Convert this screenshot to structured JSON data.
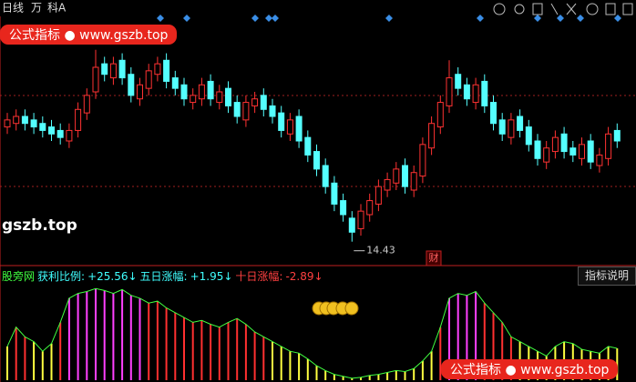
{
  "toolbar": {
    "period": "日线",
    "items": [
      "万",
      "科A"
    ]
  },
  "watermarks": {
    "badge": "公式指标",
    "url": "www.gszb.top",
    "site": "gszb.top"
  },
  "button": "指标说明",
  "chart_data": [
    {
      "type": "candlestick",
      "ylim": [
        13.8,
        20.8
      ],
      "up_color": "#ff3232",
      "down_color": "#54ffff",
      "low_annotation": 14.43,
      "marker": "财",
      "open": [
        17.7,
        17.8,
        18.0,
        17.9,
        17.8,
        17.7,
        17.6,
        17.3,
        17.6,
        18.1,
        18.7,
        19.5,
        19.1,
        19.6,
        19.2,
        18.5,
        18.8,
        19.2,
        19.6,
        19.1,
        18.9,
        18.4,
        18.5,
        19.0,
        18.4,
        18.8,
        18.4,
        17.9,
        18.3,
        18.6,
        18.3,
        18.1,
        17.5,
        18.0,
        17.4,
        17.0,
        16.6,
        16.1,
        15.6,
        15.1,
        14.8,
        15.2,
        15.5,
        15.9,
        16.1,
        16.6,
        15.9,
        16.3,
        17.1,
        17.7,
        18.3,
        19.2,
        18.9,
        18.4,
        19.0,
        18.4,
        17.9,
        17.4,
        18.0,
        17.7,
        17.3,
        16.7,
        17.0,
        17.5,
        17.1,
        16.8,
        17.3,
        16.6,
        16.8,
        17.6
      ],
      "high": [
        18.1,
        18.2,
        18.2,
        18.1,
        18.0,
        17.9,
        17.8,
        17.8,
        18.4,
        18.8,
        19.9,
        19.7,
        19.7,
        19.8,
        19.4,
        19.1,
        19.5,
        19.7,
        19.8,
        19.3,
        19.1,
        18.8,
        19.1,
        19.2,
        18.9,
        19.0,
        18.6,
        18.6,
        18.7,
        18.8,
        18.5,
        18.3,
        18.1,
        18.2,
        17.6,
        17.2,
        16.8,
        16.3,
        15.8,
        15.3,
        15.5,
        15.8,
        16.2,
        16.4,
        16.7,
        16.8,
        16.6,
        17.4,
        18.0,
        18.6,
        19.6,
        19.4,
        19.1,
        19.1,
        19.2,
        18.6,
        18.1,
        18.1,
        18.2,
        17.9,
        17.5,
        17.3,
        17.6,
        17.7,
        17.3,
        17.4,
        17.5,
        17.1,
        17.7,
        17.8
      ],
      "low": [
        17.5,
        17.6,
        17.6,
        17.5,
        17.4,
        17.3,
        17.2,
        17.1,
        17.4,
        17.9,
        18.5,
        19.0,
        18.9,
        18.9,
        18.4,
        18.3,
        18.6,
        19.0,
        18.8,
        18.6,
        18.3,
        18.2,
        18.3,
        18.3,
        18.2,
        18.1,
        17.8,
        17.7,
        18.1,
        18.0,
        17.8,
        17.4,
        17.3,
        17.1,
        16.7,
        16.3,
        15.8,
        15.3,
        15.0,
        14.43,
        14.6,
        15.0,
        15.3,
        15.7,
        15.9,
        15.8,
        15.7,
        16.1,
        16.9,
        17.5,
        18.1,
        18.6,
        18.3,
        18.2,
        18.1,
        17.6,
        17.3,
        17.2,
        17.4,
        17.0,
        16.6,
        16.5,
        16.8,
        16.8,
        16.7,
        16.6,
        16.5,
        16.4,
        16.6,
        17.1
      ],
      "close": [
        17.9,
        18.0,
        17.8,
        17.7,
        17.6,
        17.5,
        17.4,
        17.6,
        18.2,
        18.6,
        19.4,
        19.2,
        19.5,
        19.1,
        18.6,
        18.9,
        19.3,
        19.5,
        19.0,
        18.8,
        18.5,
        18.6,
        18.9,
        18.5,
        18.7,
        18.3,
        18.0,
        18.4,
        18.5,
        18.2,
        18.0,
        17.6,
        17.9,
        17.3,
        16.9,
        16.5,
        16.0,
        15.5,
        15.2,
        14.7,
        15.3,
        15.6,
        16.0,
        16.2,
        16.5,
        16.0,
        16.4,
        17.2,
        17.8,
        18.4,
        19.1,
        18.8,
        18.5,
        18.9,
        18.3,
        17.8,
        17.5,
        17.9,
        17.6,
        17.2,
        16.8,
        17.1,
        17.4,
        17.0,
        16.9,
        17.2,
        16.7,
        16.9,
        17.5,
        17.3
      ]
    },
    {
      "type": "bar",
      "title": "股旁网",
      "ylim": [
        0,
        100
      ],
      "line_color": "#40ff40",
      "stats": [
        {
          "label": "获利比例:",
          "value": 25.56,
          "value_label": "+25.56↓",
          "color": "#40ffff"
        },
        {
          "label": "五日涨幅:",
          "value": 1.95,
          "value_label": "+1.95↓",
          "color": "#40ffff"
        },
        {
          "label": "十日涨幅:",
          "value": -2.89,
          "value_label": "-2.89↓",
          "color": "#ff4040"
        }
      ],
      "values": [
        35,
        55,
        45,
        40,
        30,
        38,
        60,
        85,
        90,
        92,
        95,
        93,
        90,
        94,
        88,
        85,
        80,
        82,
        75,
        70,
        65,
        60,
        62,
        58,
        55,
        60,
        64,
        58,
        50,
        45,
        40,
        35,
        30,
        28,
        22,
        15,
        10,
        6,
        4,
        2,
        3,
        5,
        6,
        8,
        10,
        9,
        12,
        20,
        30,
        55,
        85,
        90,
        88,
        92,
        80,
        70,
        60,
        45,
        40,
        35,
        30,
        25,
        35,
        40,
        38,
        32,
        30,
        28,
        35,
        33
      ],
      "colors": [
        "#ffff40",
        "#ff3030",
        "#ff3030",
        "#ffff40",
        "#ffff40",
        "#ffff40",
        "#ff3030",
        "#ff40ff",
        "#ff40ff",
        "#ff40ff",
        "#ff40ff",
        "#ff40ff",
        "#ff40ff",
        "#ff40ff",
        "#ff40ff",
        "#ff40ff",
        "#ff3030",
        "#ff3030",
        "#ff3030",
        "#ff3030",
        "#ff3030",
        "#ff3030",
        "#ff3030",
        "#ff3030",
        "#ff3030",
        "#ff3030",
        "#ff3030",
        "#ff3030",
        "#ff3030",
        "#ff3030",
        "#ffff40",
        "#ffff40",
        "#ffff40",
        "#ffff40",
        "#ffff40",
        "#ffff40",
        "#ffff40",
        "#ffff40",
        "#ffff40",
        "#ffff40",
        "#ffff40",
        "#ffff40",
        "#ffff40",
        "#ffff40",
        "#ffff40",
        "#ffff40",
        "#ffff40",
        "#ffff40",
        "#ffff40",
        "#ff3030",
        "#ff40ff",
        "#ff40ff",
        "#ff40ff",
        "#ff40ff",
        "#ff3030",
        "#ff3030",
        "#ff3030",
        "#ff3030",
        "#ffff40",
        "#ffff40",
        "#ffff40",
        "#ffff40",
        "#ffff40",
        "#ffff40",
        "#ffff40",
        "#ffff40",
        "#ffff40",
        "#ffff40",
        "#ffff40",
        "#ffff40"
      ]
    }
  ]
}
